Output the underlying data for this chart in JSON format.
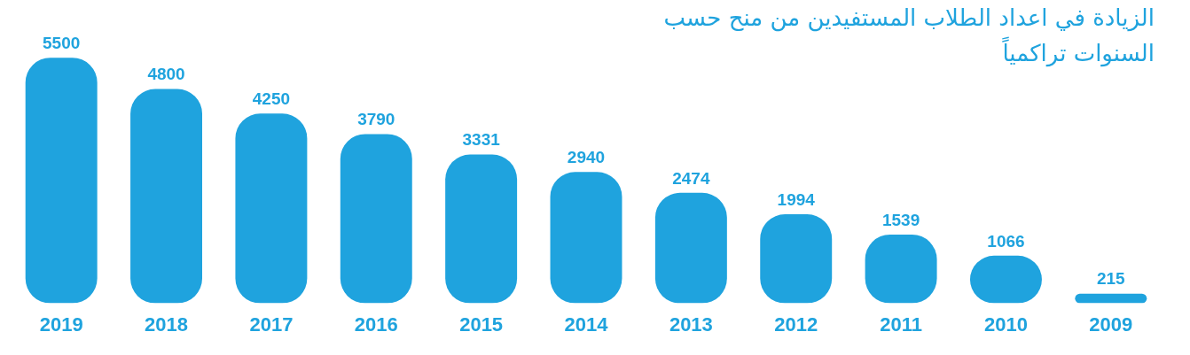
{
  "chart_data": {
    "type": "bar",
    "title": "الزيادة في اعداد الطلاب المستفيدين من منح حسب السنوات تراكمياً",
    "categories": [
      "2019",
      "2018",
      "2017",
      "2016",
      "2015",
      "2014",
      "2013",
      "2012",
      "2011",
      "2010",
      "2009"
    ],
    "values": [
      5500,
      4800,
      4250,
      3790,
      3331,
      2940,
      2474,
      1994,
      1539,
      1066,
      215
    ],
    "color": "#1fa3de",
    "data_labels": true,
    "grid": false,
    "legend": false
  }
}
